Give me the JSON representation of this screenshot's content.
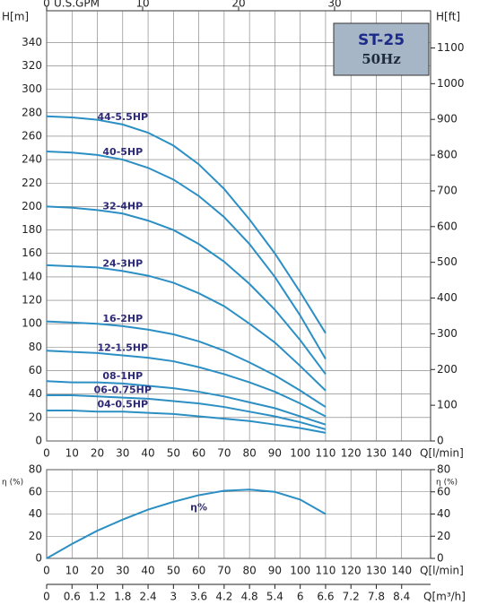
{
  "title": "ST-25",
  "subtitle": "50Hz",
  "chart_data": [
    {
      "type": "line",
      "y_label": "H[m]",
      "y2_label": "H[ft]",
      "x_label": "Q[l/min]",
      "top_axis_label": "U.S.GPM",
      "x": [
        0,
        10,
        20,
        30,
        40,
        50,
        60,
        70,
        80,
        90,
        100,
        110
      ],
      "xlim": [
        0,
        150
      ],
      "xticks": [
        0,
        10,
        20,
        30,
        40,
        50,
        60,
        70,
        80,
        90,
        100,
        110,
        120,
        130,
        140
      ],
      "ylim": [
        0,
        367
      ],
      "yticks": [
        0,
        20,
        40,
        60,
        80,
        100,
        120,
        140,
        160,
        180,
        200,
        220,
        240,
        260,
        280,
        300,
        320,
        340
      ],
      "y2lim": [
        0,
        1204
      ],
      "y2ticks": [
        0,
        100,
        200,
        300,
        400,
        500,
        600,
        700,
        800,
        900,
        1000,
        1100
      ],
      "top_xlim": [
        0,
        39.63
      ],
      "top_xticks": [
        0,
        10,
        20,
        30
      ],
      "grid": true,
      "series": [
        {
          "name": "44-5.5HP",
          "color": "#2b8fc4",
          "values": [
            277,
            276,
            274,
            270,
            263,
            252,
            236,
            215,
            189,
            160,
            127,
            92
          ]
        },
        {
          "name": "40-5HP",
          "color": "#2b8fc4",
          "values": [
            247,
            246,
            244,
            240,
            233,
            223,
            209,
            191,
            168,
            140,
            107,
            70
          ]
        },
        {
          "name": "32-4HP",
          "color": "#2b8fc4",
          "values": [
            200,
            199,
            197,
            194,
            188,
            180,
            168,
            153,
            134,
            112,
            86,
            57
          ]
        },
        {
          "name": "24-3HP",
          "color": "#2b8fc4",
          "values": [
            150,
            149,
            148,
            145,
            141,
            135,
            126,
            115,
            100,
            84,
            64,
            43
          ]
        },
        {
          "name": "16-2HP",
          "color": "#2b8fc4",
          "values": [
            102,
            101,
            100,
            98,
            95,
            91,
            85,
            77,
            67,
            56,
            43,
            29
          ]
        },
        {
          "name": "12-1.5HP",
          "color": "#2b8fc4",
          "values": [
            77,
            76,
            75,
            73,
            71,
            68,
            63,
            57,
            50,
            42,
            32,
            21
          ]
        },
        {
          "name": "08-1HP",
          "color": "#2b8fc4",
          "values": [
            51,
            50,
            50,
            49,
            47,
            45,
            42,
            38,
            33,
            28,
            21,
            14
          ]
        },
        {
          "name": "06-0.75HP",
          "color": "#2b8fc4",
          "values": [
            39,
            39,
            38,
            37,
            36,
            34,
            32,
            29,
            25,
            21,
            16,
            10
          ]
        },
        {
          "name": "04-0.5HP",
          "color": "#2b8fc4",
          "values": [
            26,
            26,
            25,
            25,
            24,
            23,
            21,
            19,
            17,
            14,
            11,
            7
          ]
        }
      ]
    },
    {
      "type": "line",
      "y_label": "η (%)",
      "y2_label": "η (%)",
      "x_label": "Q[l/min]",
      "bottom_axis_label": "Q[m³/h]",
      "x": [
        0,
        10,
        20,
        30,
        40,
        50,
        60,
        70,
        80,
        90,
        100,
        110
      ],
      "xlim": [
        0,
        150
      ],
      "xticks": [
        0,
        10,
        20,
        30,
        40,
        50,
        60,
        70,
        80,
        90,
        100,
        110,
        120,
        130,
        140
      ],
      "ylim": [
        0,
        80
      ],
      "yticks": [
        0,
        20,
        40,
        60,
        80
      ],
      "y2lim": [
        0,
        80
      ],
      "y2ticks": [
        0,
        20,
        40,
        60,
        80
      ],
      "bottom_xlim": [
        0,
        9
      ],
      "bottom_xticks": [
        0,
        0.6,
        1.2,
        1.8,
        2.4,
        3,
        3.6,
        4.2,
        4.8,
        5.4,
        6,
        6.6,
        7.2,
        7.8,
        8.4
      ],
      "grid": true,
      "series": [
        {
          "name": "η%",
          "color": "#2b8fc4",
          "values": [
            0,
            13,
            25,
            35,
            44,
            51,
            57,
            61,
            62,
            60,
            53,
            40
          ]
        }
      ]
    }
  ]
}
